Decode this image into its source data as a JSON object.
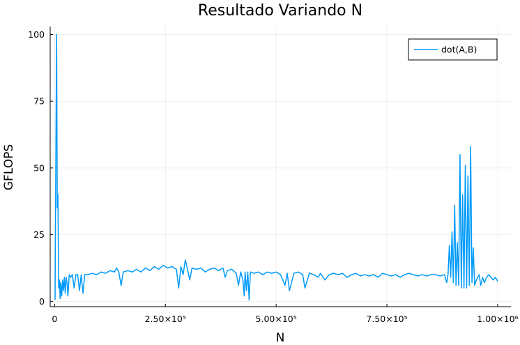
{
  "chart_data": {
    "type": "line",
    "title": "Resultado Variando N",
    "xlabel": "N",
    "ylabel": "GFLOPS",
    "xlim": [
      -10000,
      1030000
    ],
    "ylim": [
      -2,
      103
    ],
    "grid": true,
    "legend_position": "top-right",
    "x_ticks": [
      {
        "value": 0,
        "label": "0"
      },
      {
        "value": 250000,
        "label": "2.50×10⁵"
      },
      {
        "value": 500000,
        "label": "5.00×10⁵"
      },
      {
        "value": 750000,
        "label": "7.50×10⁵"
      },
      {
        "value": 1000000,
        "label": "1.00×10⁶"
      }
    ],
    "y_ticks": [
      {
        "value": 0,
        "label": "0"
      },
      {
        "value": 25,
        "label": "25"
      },
      {
        "value": 50,
        "label": "50"
      },
      {
        "value": 75,
        "label": "75"
      },
      {
        "value": 100,
        "label": "100"
      }
    ],
    "series": [
      {
        "name": "dot(A,B)",
        "color": "#009af9",
        "points": [
          [
            1000,
            0.5
          ],
          [
            3000,
            60
          ],
          [
            4500,
            100
          ],
          [
            6000,
            35
          ],
          [
            7500,
            40
          ],
          [
            9000,
            5
          ],
          [
            11000,
            8
          ],
          [
            12500,
            1
          ],
          [
            14000,
            7
          ],
          [
            16000,
            2
          ],
          [
            18000,
            8
          ],
          [
            20000,
            4
          ],
          [
            22000,
            9
          ],
          [
            24000,
            3
          ],
          [
            26000,
            9
          ],
          [
            28000,
            7
          ],
          [
            30000,
            2
          ],
          [
            33000,
            10
          ],
          [
            36000,
            9
          ],
          [
            40000,
            10
          ],
          [
            44000,
            5
          ],
          [
            48000,
            10
          ],
          [
            52000,
            10
          ],
          [
            56000,
            4
          ],
          [
            60000,
            10
          ],
          [
            64000,
            3
          ],
          [
            68000,
            10
          ],
          [
            75000,
            10
          ],
          [
            85000,
            10.5
          ],
          [
            95000,
            10
          ],
          [
            105000,
            11
          ],
          [
            115000,
            10.5
          ],
          [
            125000,
            11.5
          ],
          [
            135000,
            11
          ],
          [
            140000,
            12.5
          ],
          [
            145000,
            11
          ],
          [
            150000,
            6
          ],
          [
            155000,
            11
          ],
          [
            165000,
            11.5
          ],
          [
            175000,
            11
          ],
          [
            185000,
            12
          ],
          [
            195000,
            11
          ],
          [
            205000,
            12.5
          ],
          [
            215000,
            11.5
          ],
          [
            225000,
            13
          ],
          [
            235000,
            12
          ],
          [
            245000,
            13.5
          ],
          [
            255000,
            12.5
          ],
          [
            265000,
            13
          ],
          [
            275000,
            12
          ],
          [
            280000,
            5
          ],
          [
            285000,
            13
          ],
          [
            290000,
            10
          ],
          [
            295000,
            15.5
          ],
          [
            300000,
            12
          ],
          [
            305000,
            8
          ],
          [
            310000,
            12.5
          ],
          [
            320000,
            12
          ],
          [
            330000,
            12.5
          ],
          [
            340000,
            11
          ],
          [
            350000,
            12
          ],
          [
            360000,
            12.5
          ],
          [
            370000,
            11.5
          ],
          [
            380000,
            12.5
          ],
          [
            385000,
            9
          ],
          [
            390000,
            11.5
          ],
          [
            400000,
            12
          ],
          [
            410000,
            10.5
          ],
          [
            415000,
            6
          ],
          [
            420000,
            11
          ],
          [
            425000,
            8
          ],
          [
            428000,
            2
          ],
          [
            430000,
            11
          ],
          [
            433000,
            4
          ],
          [
            436000,
            11
          ],
          [
            439000,
            0.5
          ],
          [
            442000,
            11
          ],
          [
            450000,
            10.5
          ],
          [
            460000,
            11
          ],
          [
            470000,
            10
          ],
          [
            480000,
            11
          ],
          [
            490000,
            10.5
          ],
          [
            500000,
            11
          ],
          [
            510000,
            10
          ],
          [
            520000,
            6
          ],
          [
            525000,
            10.5
          ],
          [
            530000,
            4
          ],
          [
            540000,
            10.5
          ],
          [
            550000,
            11
          ],
          [
            560000,
            10
          ],
          [
            565000,
            5
          ],
          [
            575000,
            10.5
          ],
          [
            585000,
            10
          ],
          [
            595000,
            9
          ],
          [
            600000,
            10.5
          ],
          [
            610000,
            8
          ],
          [
            620000,
            10
          ],
          [
            630000,
            10.5
          ],
          [
            640000,
            10
          ],
          [
            650000,
            10.5
          ],
          [
            660000,
            9
          ],
          [
            670000,
            10
          ],
          [
            680000,
            10.5
          ],
          [
            690000,
            9.5
          ],
          [
            700000,
            10
          ],
          [
            710000,
            9.5
          ],
          [
            720000,
            10
          ],
          [
            730000,
            9
          ],
          [
            740000,
            10.5
          ],
          [
            750000,
            10
          ],
          [
            760000,
            9.5
          ],
          [
            770000,
            10
          ],
          [
            780000,
            9
          ],
          [
            790000,
            10
          ],
          [
            800000,
            10.5
          ],
          [
            810000,
            10
          ],
          [
            820000,
            9.5
          ],
          [
            830000,
            10
          ],
          [
            840000,
            9.5
          ],
          [
            850000,
            10
          ],
          [
            860000,
            10
          ],
          [
            870000,
            9.5
          ],
          [
            880000,
            10
          ],
          [
            885000,
            7
          ],
          [
            888000,
            10
          ],
          [
            891000,
            21
          ],
          [
            894000,
            9
          ],
          [
            897000,
            26
          ],
          [
            900000,
            7
          ],
          [
            903000,
            36
          ],
          [
            906000,
            6
          ],
          [
            909000,
            22
          ],
          [
            912000,
            6
          ],
          [
            915000,
            55
          ],
          [
            918000,
            5
          ],
          [
            921000,
            40
          ],
          [
            924000,
            5
          ],
          [
            927000,
            51
          ],
          [
            930000,
            5
          ],
          [
            933000,
            47
          ],
          [
            936000,
            6
          ],
          [
            939000,
            58
          ],
          [
            942000,
            7
          ],
          [
            945000,
            20
          ],
          [
            948000,
            6
          ],
          [
            952000,
            8
          ],
          [
            958000,
            10
          ],
          [
            962000,
            6
          ],
          [
            966000,
            9
          ],
          [
            970000,
            7
          ],
          [
            975000,
            9
          ],
          [
            980000,
            10
          ],
          [
            985000,
            9
          ],
          [
            990000,
            8
          ],
          [
            995000,
            9
          ],
          [
            1000000,
            7.5
          ]
        ]
      }
    ]
  }
}
